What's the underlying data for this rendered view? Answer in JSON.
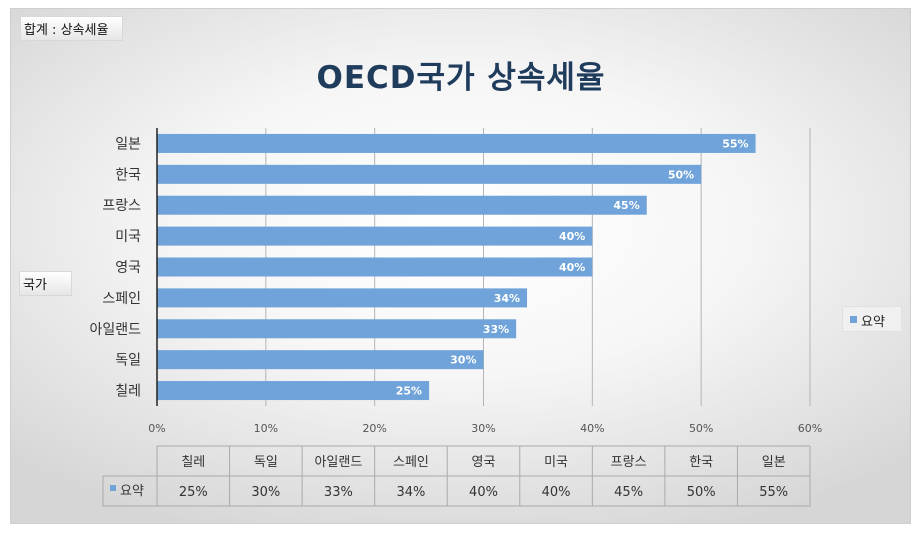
{
  "filter_label": "합계 : 상속세율",
  "axis_field_label": "국가",
  "legend_label": "요약",
  "colors": {
    "bar": "#6fa3d9",
    "title": "#203c5c"
  },
  "chart_data": {
    "type": "bar",
    "orientation": "horizontal",
    "title": "OECD국가 상속세율",
    "categories": [
      "칠레",
      "독일",
      "아일랜드",
      "스페인",
      "영국",
      "미국",
      "프랑스",
      "한국",
      "일본"
    ],
    "series": [
      {
        "name": "요약",
        "values": [
          25,
          30,
          33,
          34,
          40,
          40,
          45,
          50,
          55
        ]
      }
    ],
    "value_labels": [
      "25%",
      "30%",
      "33%",
      "34%",
      "40%",
      "40%",
      "45%",
      "50%",
      "55%"
    ],
    "xlim": [
      0,
      60
    ],
    "xticks": [
      0,
      10,
      20,
      30,
      40,
      50,
      60
    ],
    "xtick_labels": [
      "0%",
      "10%",
      "20%",
      "30%",
      "40%",
      "50%",
      "60%"
    ],
    "grid": true,
    "legend_position": "right",
    "data_table": true
  }
}
